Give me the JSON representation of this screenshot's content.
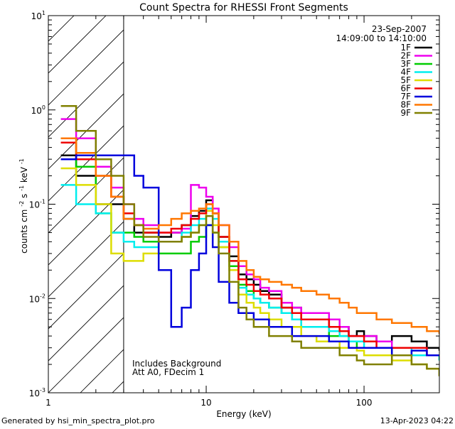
{
  "chart_data": {
    "type": "line",
    "title": "Count Spectra for RHESSI Front Segments",
    "xlabel": "Energy (keV)",
    "ylabel": "counts cm",
    "ylabel_sup1": "-2",
    "ylabel_mid": " s",
    "ylabel_sup2": "-1",
    "ylabel_end": " keV",
    "ylabel_sup3": "-1",
    "x_scale": "log",
    "y_scale": "log",
    "xlim": [
      1,
      300
    ],
    "ylim": [
      0.001,
      10
    ],
    "x_ticks": [
      {
        "value": 1,
        "label": "1"
      },
      {
        "value": 10,
        "label": "10"
      },
      {
        "value": 100,
        "label": "100"
      }
    ],
    "y_ticks": [
      {
        "value": 0.001,
        "base": "10",
        "exp": "-3"
      },
      {
        "value": 0.01,
        "base": "10",
        "exp": "-2"
      },
      {
        "value": 0.1,
        "base": "10",
        "exp": "-1"
      },
      {
        "value": 1,
        "base": "10",
        "exp": "0"
      },
      {
        "value": 10,
        "base": "10",
        "exp": "1"
      }
    ],
    "hatched_region": {
      "x_min": 1,
      "x_max": 3
    },
    "date": "23-Sep-2007",
    "time_range": "14:09:00 to 14:10:00",
    "annotation_lines": [
      "Includes Background",
      "Att A0, FDecim 1"
    ],
    "series": [
      {
        "name": "1F",
        "color": "#000000",
        "x": [
          1.2,
          1.5,
          2,
          2.5,
          3,
          3.5,
          4,
          5,
          6,
          7,
          8,
          9,
          10,
          11,
          12,
          14,
          16,
          18,
          20,
          22,
          25,
          30,
          35,
          40,
          50,
          60,
          70,
          80,
          90,
          100,
          120,
          150,
          200,
          250,
          300
        ],
        "y": [
          0.33,
          0.2,
          0.1,
          0.1,
          0.07,
          0.05,
          0.05,
          0.045,
          0.05,
          0.06,
          0.075,
          0.085,
          0.11,
          0.08,
          0.045,
          0.028,
          0.018,
          0.016,
          0.014,
          0.012,
          0.011,
          0.008,
          0.008,
          0.006,
          0.006,
          0.005,
          0.005,
          0.004,
          0.0045,
          0.004,
          0.0035,
          0.004,
          0.0035,
          0.003,
          0.0028
        ]
      },
      {
        "name": "2F",
        "color": "#ee00ee",
        "x": [
          1.2,
          1.5,
          2,
          2.5,
          3,
          3.5,
          4,
          5,
          6,
          7,
          8,
          9,
          10,
          11,
          12,
          14,
          16,
          18,
          20,
          22,
          25,
          30,
          35,
          40,
          50,
          60,
          70,
          80,
          90,
          100,
          120,
          150,
          200,
          250,
          300
        ],
        "y": [
          0.8,
          0.5,
          0.25,
          0.15,
          0.1,
          0.07,
          0.06,
          0.05,
          0.05,
          0.055,
          0.16,
          0.15,
          0.12,
          0.09,
          0.06,
          0.035,
          0.022,
          0.018,
          0.016,
          0.013,
          0.012,
          0.009,
          0.008,
          0.007,
          0.007,
          0.006,
          0.005,
          0.004,
          0.004,
          0.004,
          0.0035,
          0.003,
          0.003,
          0.0025,
          0.0025
        ]
      },
      {
        "name": "3F",
        "color": "#00cc00",
        "x": [
          1.2,
          1.5,
          2,
          2.5,
          3,
          3.5,
          4,
          5,
          6,
          7,
          8,
          9,
          10,
          11,
          12,
          14,
          16,
          18,
          20,
          22,
          25,
          30,
          35,
          40,
          50,
          60,
          70,
          80,
          90,
          100,
          120,
          150,
          200,
          250,
          300
        ],
        "y": [
          0.5,
          0.25,
          0.08,
          0.05,
          0.05,
          0.045,
          0.04,
          0.03,
          0.03,
          0.03,
          0.04,
          0.045,
          0.06,
          0.05,
          0.035,
          0.022,
          0.014,
          0.012,
          0.01,
          0.009,
          0.008,
          0.007,
          0.006,
          0.005,
          0.005,
          0.004,
          0.004,
          0.0035,
          0.003,
          0.003,
          0.003,
          0.0025,
          0.0025,
          0.0025,
          0.0022
        ]
      },
      {
        "name": "4F",
        "color": "#00eeee",
        "x": [
          1.2,
          1.5,
          2,
          2.5,
          3,
          3.5,
          4,
          5,
          6,
          7,
          8,
          9,
          10,
          11,
          12,
          14,
          16,
          18,
          20,
          22,
          25,
          30,
          35,
          40,
          50,
          60,
          70,
          80,
          90,
          100,
          120,
          150,
          200,
          250,
          300
        ],
        "y": [
          0.16,
          0.1,
          0.08,
          0.05,
          0.04,
          0.035,
          0.035,
          0.04,
          0.04,
          0.05,
          0.06,
          0.07,
          0.09,
          0.07,
          0.04,
          0.025,
          0.013,
          0.011,
          0.01,
          0.009,
          0.008,
          0.007,
          0.006,
          0.005,
          0.005,
          0.0045,
          0.004,
          0.0035,
          0.0035,
          0.003,
          0.003,
          0.003,
          0.0025,
          0.0025,
          0.0022
        ]
      },
      {
        "name": "5F",
        "color": "#dddd00",
        "x": [
          1.2,
          1.5,
          2,
          2.5,
          3,
          3.5,
          4,
          5,
          6,
          7,
          8,
          9,
          10,
          11,
          12,
          14,
          16,
          18,
          20,
          22,
          25,
          30,
          35,
          40,
          50,
          60,
          70,
          80,
          90,
          100,
          120,
          150,
          200,
          250,
          300
        ],
        "y": [
          0.24,
          0.16,
          0.1,
          0.03,
          0.025,
          0.025,
          0.03,
          0.04,
          0.04,
          0.045,
          0.05,
          0.06,
          0.085,
          0.06,
          0.035,
          0.02,
          0.011,
          0.009,
          0.008,
          0.007,
          0.006,
          0.005,
          0.005,
          0.004,
          0.0035,
          0.0035,
          0.003,
          0.003,
          0.0028,
          0.0025,
          0.0025,
          0.0022,
          0.002,
          0.0018,
          0.0015
        ]
      },
      {
        "name": "6F",
        "color": "#ee0000",
        "x": [
          1.2,
          1.5,
          2,
          2.5,
          3,
          3.5,
          4,
          5,
          6,
          7,
          8,
          9,
          10,
          11,
          12,
          14,
          16,
          18,
          20,
          22,
          25,
          30,
          35,
          40,
          50,
          60,
          70,
          80,
          90,
          100,
          120,
          150,
          200,
          250,
          300
        ],
        "y": [
          0.45,
          0.3,
          0.2,
          0.12,
          0.08,
          0.06,
          0.05,
          0.05,
          0.055,
          0.06,
          0.07,
          0.08,
          0.1,
          0.08,
          0.045,
          0.025,
          0.016,
          0.014,
          0.012,
          0.011,
          0.01,
          0.008,
          0.007,
          0.006,
          0.006,
          0.005,
          0.0045,
          0.004,
          0.004,
          0.0035,
          0.003,
          0.003,
          0.003,
          0.0025,
          0.0025
        ]
      },
      {
        "name": "7F",
        "color": "#0000dd",
        "x": [
          1.2,
          1.5,
          2,
          2.5,
          3,
          3.5,
          4,
          5,
          6,
          7,
          8,
          9,
          10,
          11,
          12,
          14,
          16,
          18,
          20,
          22,
          25,
          30,
          35,
          40,
          50,
          60,
          70,
          80,
          90,
          100,
          120,
          150,
          200,
          250,
          300
        ],
        "y": [
          0.3,
          0.33,
          0.33,
          0.33,
          0.33,
          0.2,
          0.15,
          0.02,
          0.005,
          0.008,
          0.02,
          0.03,
          0.06,
          0.035,
          0.015,
          0.009,
          0.007,
          0.007,
          0.006,
          0.006,
          0.005,
          0.005,
          0.004,
          0.004,
          0.004,
          0.0035,
          0.0035,
          0.003,
          0.003,
          0.003,
          0.003,
          0.0025,
          0.0028,
          0.0025,
          0.0025
        ]
      },
      {
        "name": "8F",
        "color": "#ff7700",
        "x": [
          1.2,
          1.5,
          2,
          2.5,
          3,
          3.5,
          4,
          5,
          6,
          7,
          8,
          9,
          10,
          11,
          12,
          14,
          16,
          18,
          20,
          22,
          25,
          30,
          35,
          40,
          50,
          60,
          70,
          80,
          90,
          100,
          120,
          150,
          200,
          250,
          300
        ],
        "y": [
          0.5,
          0.35,
          0.2,
          0.12,
          0.07,
          0.06,
          0.055,
          0.06,
          0.07,
          0.08,
          0.085,
          0.09,
          0.1,
          0.08,
          0.06,
          0.04,
          0.025,
          0.02,
          0.017,
          0.016,
          0.015,
          0.014,
          0.013,
          0.012,
          0.011,
          0.01,
          0.009,
          0.008,
          0.007,
          0.007,
          0.006,
          0.0055,
          0.005,
          0.0045,
          0.0042
        ]
      },
      {
        "name": "9F",
        "color": "#808000",
        "x": [
          1.2,
          1.5,
          2,
          2.5,
          3,
          3.5,
          4,
          5,
          6,
          7,
          8,
          9,
          10,
          11,
          12,
          14,
          16,
          18,
          20,
          22,
          25,
          30,
          35,
          40,
          50,
          60,
          70,
          80,
          90,
          100,
          120,
          150,
          200,
          250,
          300
        ],
        "y": [
          1.1,
          0.6,
          0.3,
          0.2,
          0.1,
          0.06,
          0.045,
          0.04,
          0.04,
          0.045,
          0.05,
          0.06,
          0.075,
          0.05,
          0.03,
          0.015,
          0.008,
          0.006,
          0.005,
          0.005,
          0.004,
          0.004,
          0.0035,
          0.003,
          0.003,
          0.003,
          0.0025,
          0.0025,
          0.0022,
          0.002,
          0.002,
          0.0025,
          0.002,
          0.0018,
          0.0015
        ]
      }
    ]
  },
  "footer": {
    "generated_by": "Generated by hsi_min_spectra_plot.pro",
    "timestamp": "13-Apr-2023 04:22"
  }
}
